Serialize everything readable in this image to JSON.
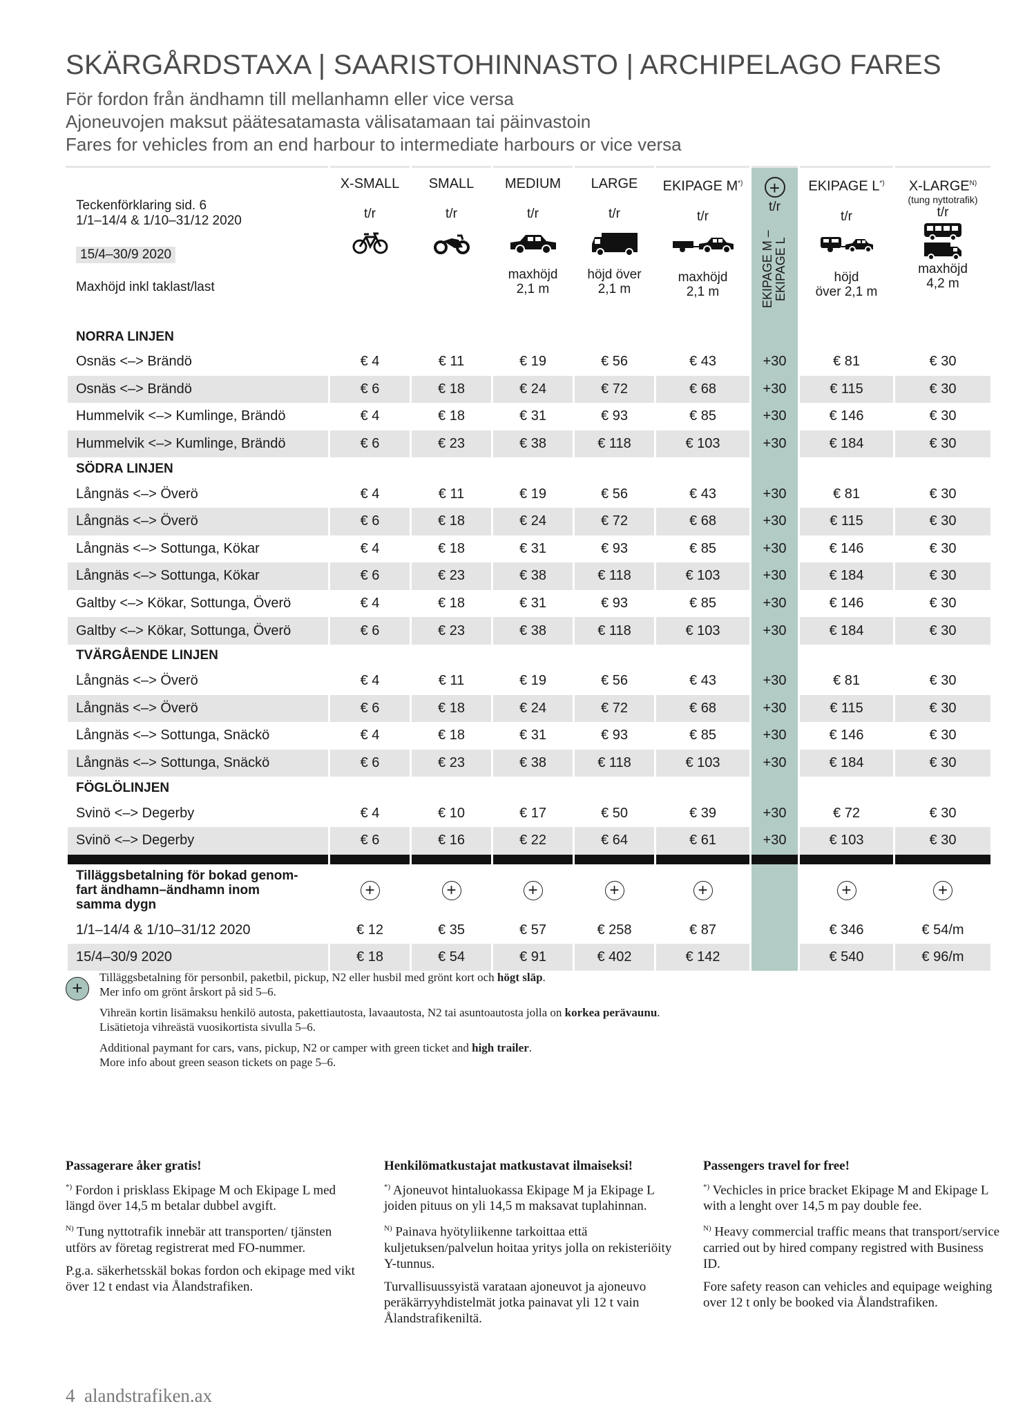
{
  "title": "SKÄRGÅRDSTAXA | SAARISTOHINNASTO | ARCHIPELAGO FARES",
  "subtitles": [
    "För fordon från ändhamn till mellanhamn eller vice versa",
    "Ajoneuvojen maksut päätesatamasta välisatamaan tai päinvastoin",
    "Fares for vehicles from an end harbour to intermediate harbours or vice versa"
  ],
  "legend": {
    "line1": "Teckenförklaring sid. 6",
    "line2": "1/1–14/4 & 1/10–31/12 2020",
    "badge": "15/4–30/9 2020",
    "maxheight": "Maxhöjd inkl taklast/last"
  },
  "columns": {
    "xsmall": {
      "name": "X-SMALL",
      "tr": "t/r",
      "note1": "",
      "note2": ""
    },
    "small": {
      "name": "SMALL",
      "tr": "t/r",
      "note1": "",
      "note2": ""
    },
    "medium": {
      "name": "MEDIUM",
      "tr": "t/r",
      "note1": "maxhöjd",
      "note2": "2,1 m"
    },
    "large": {
      "name": "LARGE",
      "tr": "t/r",
      "note1": "höjd över",
      "note2": "2,1 m"
    },
    "ekipage_m": {
      "name": "EKIPAGE M",
      "sup": "*)",
      "tr": "t/r",
      "note1": "maxhöjd",
      "note2": "2,1 m"
    },
    "plus": {
      "tr": "t/r",
      "vertical": "EKIPAGE M – EKIPAGE L",
      "symbol": "+"
    },
    "ekipage_l": {
      "name": "EKIPAGE L",
      "sup": "*)",
      "tr": "t/r",
      "note1": "höjd",
      "note2": "över 2,1 m"
    },
    "xlarge": {
      "name": "X-LARGE",
      "sup": "N)",
      "sub": "(tung nyttotrafik)",
      "tr": "t/r",
      "note1": "maxhöjd",
      "note2": "4,2 m"
    }
  },
  "sections": [
    {
      "name": "NORRA LINJEN",
      "rows": [
        {
          "route": "Osnäs <–> Brändö",
          "shade": false,
          "v": [
            "€ 4",
            "€ 11",
            "€ 19",
            "€ 56",
            "€ 43",
            "+30",
            "€ 81",
            "€ 30"
          ]
        },
        {
          "route": "Osnäs <–> Brändö",
          "shade": true,
          "v": [
            "€ 6",
            "€ 18",
            "€ 24",
            "€ 72",
            "€ 68",
            "+30",
            "€ 115",
            "€ 30"
          ]
        },
        {
          "route": "Hummelvik <–> Kumlinge, Brändö",
          "shade": false,
          "v": [
            "€ 4",
            "€ 18",
            "€ 31",
            "€ 93",
            "€ 85",
            "+30",
            "€ 146",
            "€ 30"
          ]
        },
        {
          "route": "Hummelvik <–> Kumlinge, Brändö",
          "shade": true,
          "v": [
            "€ 6",
            "€ 23",
            "€ 38",
            "€ 118",
            "€ 103",
            "+30",
            "€ 184",
            "€ 30"
          ]
        }
      ]
    },
    {
      "name": "SÖDRA LINJEN",
      "rows": [
        {
          "route": "Långnäs <–> Överö",
          "shade": false,
          "v": [
            "€ 4",
            "€ 11",
            "€ 19",
            "€ 56",
            "€ 43",
            "+30",
            "€ 81",
            "€ 30"
          ]
        },
        {
          "route": "Långnäs <–> Överö",
          "shade": true,
          "v": [
            "€ 6",
            "€ 18",
            "€ 24",
            "€ 72",
            "€ 68",
            "+30",
            "€ 115",
            "€ 30"
          ]
        },
        {
          "route": "Långnäs <–> Sottunga, Kökar",
          "shade": false,
          "v": [
            "€ 4",
            "€ 18",
            "€ 31",
            "€ 93",
            "€ 85",
            "+30",
            "€ 146",
            "€ 30"
          ]
        },
        {
          "route": "Långnäs <–> Sottunga, Kökar",
          "shade": true,
          "v": [
            "€ 6",
            "€ 23",
            "€ 38",
            "€ 118",
            "€ 103",
            "+30",
            "€ 184",
            "€ 30"
          ]
        },
        {
          "route": "Galtby <–> Kökar, Sottunga, Överö",
          "shade": false,
          "v": [
            "€ 4",
            "€ 18",
            "€ 31",
            "€ 93",
            "€ 85",
            "+30",
            "€ 146",
            "€ 30"
          ]
        },
        {
          "route": "Galtby <–> Kökar, Sottunga, Överö",
          "shade": true,
          "v": [
            "€ 6",
            "€ 23",
            "€ 38",
            "€ 118",
            "€ 103",
            "+30",
            "€ 184",
            "€ 30"
          ]
        }
      ]
    },
    {
      "name": "TVÄRGÅENDE LINJEN",
      "rows": [
        {
          "route": "Långnäs <–> Överö",
          "shade": false,
          "v": [
            "€ 4",
            "€ 11",
            "€ 19",
            "€ 56",
            "€ 43",
            "+30",
            "€ 81",
            "€ 30"
          ]
        },
        {
          "route": "Långnäs <–> Överö",
          "shade": true,
          "v": [
            "€ 6",
            "€ 18",
            "€ 24",
            "€ 72",
            "€ 68",
            "+30",
            "€ 115",
            "€ 30"
          ]
        },
        {
          "route": "Långnäs <–> Sottunga, Snäckö",
          "shade": false,
          "v": [
            "€ 4",
            "€ 18",
            "€ 31",
            "€ 93",
            "€ 85",
            "+30",
            "€ 146",
            "€ 30"
          ]
        },
        {
          "route": "Långnäs <–> Sottunga, Snäckö",
          "shade": true,
          "v": [
            "€ 6",
            "€ 23",
            "€ 38",
            "€ 118",
            "€ 103",
            "+30",
            "€ 184",
            "€ 30"
          ]
        }
      ]
    },
    {
      "name": "FÖGLÖLINJEN",
      "rows": [
        {
          "route": "Svinö <–> Degerby",
          "shade": false,
          "v": [
            "€ 4",
            "€ 10",
            "€ 17",
            "€ 50",
            "€ 39",
            "+30",
            "€ 72",
            "€ 30"
          ]
        },
        {
          "route": "Svinö <–> Degerby",
          "shade": true,
          "v": [
            "€ 6",
            "€ 16",
            "€ 22",
            "€ 64",
            "€ 61",
            "+30",
            "€ 103",
            "€ 30"
          ]
        }
      ]
    }
  ],
  "supplement": {
    "title": "Tilläggsbetalning för bokad genomfart ändhamn–ändhamn inom samma dygn",
    "title_lines": [
      "Tilläggsbetalning för bokad genom-",
      "fart ändhamn–ändhamn inom",
      "samma dygn"
    ],
    "row1": {
      "label": "1/1–14/4 & 1/10–31/12 2020",
      "v": [
        "€ 12",
        "€ 35",
        "€ 57",
        "€ 258",
        "€ 87",
        "",
        "€ 346",
        "€ 54/m"
      ]
    },
    "row2": {
      "label": "15/4–30/9 2020",
      "v": [
        "€ 18",
        "€ 54",
        "€ 91",
        "€ 402",
        "€ 142",
        "",
        "€ 540",
        "€ 96/m"
      ]
    }
  },
  "footnote": {
    "p1a": "Tilläggsbetalning för personbil, paketbil, pickup, N2 eller husbil med grönt kort och ",
    "p1b": "högt släp",
    "p1c": ".",
    "p1d": "Mer info om grönt årskort på sid 5–6.",
    "p2a": "Vihreän kortin lisämaksu henkilö autosta, pakettiautosta, lavaautosta, N2 tai asuntoautosta jolla on ",
    "p2b": "korkea perävaunu",
    "p2c": ".",
    "p2d": "Lisätietoja vihreästä vuosikortista sivulla 5–6.",
    "p3a": "Additional paymant for cars, vans, pickup, N2 or camper with green ticket and ",
    "p3b": "high trailer",
    "p3c": ".",
    "p3d": "More info about green season tickets on page 5–6."
  },
  "info": {
    "sv": {
      "heading": "Passagerare åker gratis!",
      "p1": "Fordon i prisklass Ekipage M och Ekipage L med längd över 14,5 m betalar dubbel avgift.",
      "p2": "Tung nyttotrafik innebär att transporten/ tjänsten utförs av företag registrerat med FO-nummer.",
      "p3": "P.g.a. säkerhetsskäl bokas fordon och ekipage med vikt över 12 t endast via Ålandstrafiken."
    },
    "fi": {
      "heading": "Henkilömatkustajat matkustavat ilmaiseksi!",
      "p1": "Ajoneuvot hintaluokassa Ekipage M ja Ekipage L joiden pituus on yli 14,5 m maksavat tuplahinnan.",
      "p2": "Painava hyötyliikenne tarkoittaa että kuljetuksen/palvelun hoitaa yritys jolla on rekisteriöity Y-tunnus.",
      "p3": "Turvallisuussyistä varataan ajoneuvot ja ajoneuvo peräkärryyhdistelmät jotka painavat yli 12 t vain Ålandstrafikeniltä."
    },
    "en": {
      "heading": "Passengers travel for free!",
      "p1": "Vechicles in price bracket Ekipage M and Ekipage L with a lenght over 14,5 m pay double fee.",
      "p2": "Heavy commercial traffic means that transport/service carried out by hired company registred with Business ID.",
      "p3": "Fore safety reason can vehicles and equipage weighing over 12 t only be booked via Ålandstrafiken."
    },
    "sup_star": "*)",
    "sup_n": "N)"
  },
  "footer": {
    "page": "4",
    "site": "alandstrafiken.ax"
  },
  "icons": [
    "bicycle-icon",
    "motorcycle-icon",
    "car-icon",
    "van-icon",
    "car-trailer-icon",
    "plus-icon",
    "camper-car-icon",
    "bus-truck-icon"
  ]
}
